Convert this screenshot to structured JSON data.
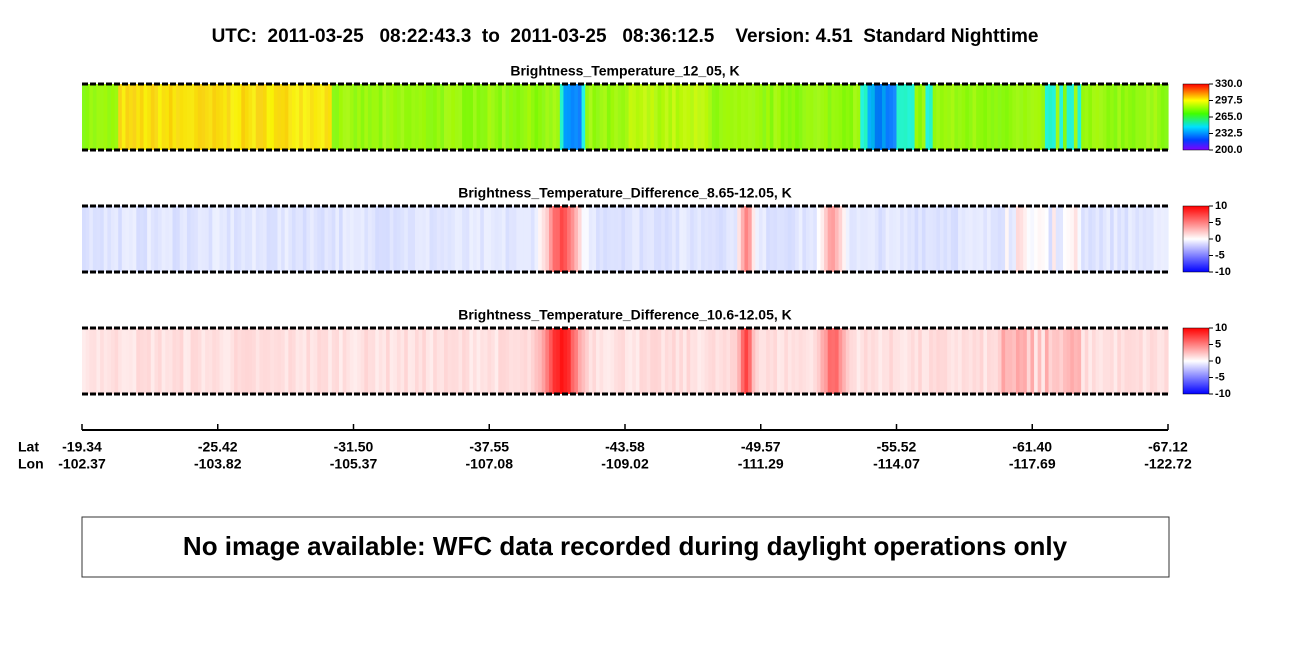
{
  "header": {
    "title": "UTC:  2011-03-25   08:22:43.3  to  2011-03-25   08:36:12.5    Version: 4.51  Standard Nighttime"
  },
  "panels": [
    {
      "title": "Brightness_Temperature_12_05, K",
      "colorbar_ticks": [
        "330.0",
        "297.5",
        "265.0",
        "232.5",
        "200.0"
      ]
    },
    {
      "title": "Brightness_Temperature_Difference_8.65-12.05, K",
      "colorbar_ticks": [
        "10",
        "5",
        "0",
        "-5",
        "-10"
      ]
    },
    {
      "title": "Brightness_Temperature_Difference_10.6-12.05, K",
      "colorbar_ticks": [
        "10",
        "5",
        "0",
        "-5",
        "-10"
      ]
    }
  ],
  "axis": {
    "lat_label": "Lat",
    "lon_label": "Lon",
    "ticks": [
      {
        "lat": "-19.34",
        "lon": "-102.37"
      },
      {
        "lat": "-25.42",
        "lon": "-103.82"
      },
      {
        "lat": "-31.50",
        "lon": "-105.37"
      },
      {
        "lat": "-37.55",
        "lon": "-107.08"
      },
      {
        "lat": "-43.58",
        "lon": "-109.02"
      },
      {
        "lat": "-49.57",
        "lon": "-111.29"
      },
      {
        "lat": "-55.52",
        "lon": "-114.07"
      },
      {
        "lat": "-61.40",
        "lon": "-117.69"
      },
      {
        "lat": "-67.12",
        "lon": "-122.72"
      }
    ]
  },
  "message": "No image available: WFC data recorded during daylight operations only"
}
